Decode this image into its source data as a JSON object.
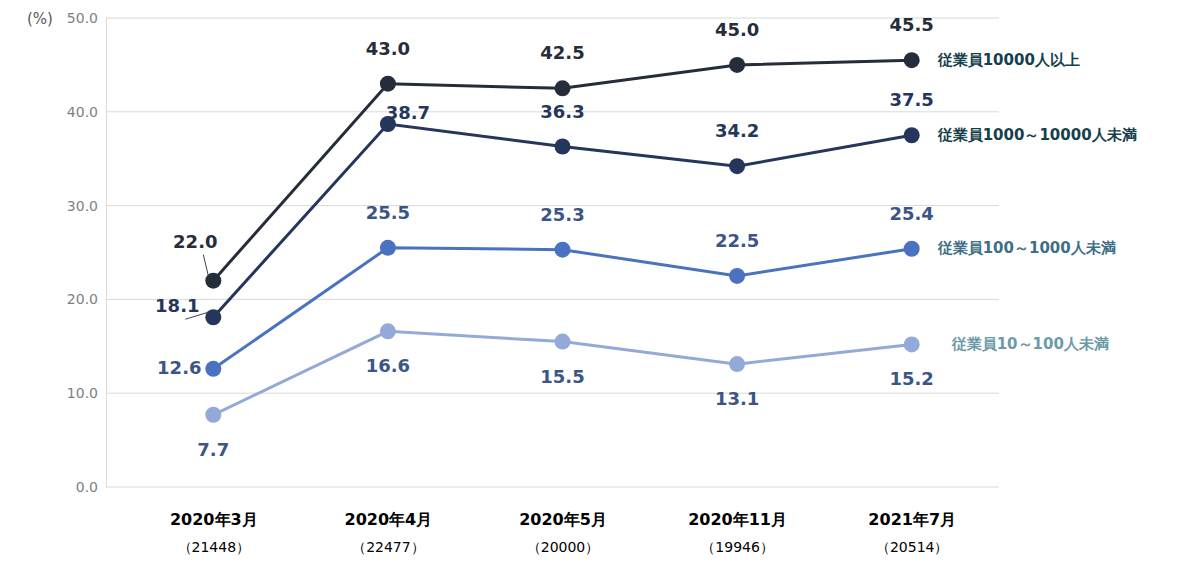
{
  "chart_data": {
    "type": "line",
    "y_label": "(%)",
    "categories": [
      "2020年3月\n（21448）",
      "2020年4月\n（22477）",
      "2020年5月\n（20000）",
      "2020年11月\n（19946）",
      "2021年7月\n（20514）"
    ],
    "series": [
      {
        "name": "従業員10000人以上",
        "color": "#262d3a",
        "values": [
          22.0,
          43.0,
          42.5,
          45.0,
          45.5
        ],
        "value_labels": [
          "22.0",
          "43.0",
          "42.5",
          "45.0",
          "45.5"
        ]
      },
      {
        "name": "従業員1000～10000人未満",
        "color": "#25365c",
        "values": [
          18.1,
          38.7,
          36.3,
          34.2,
          37.5
        ],
        "value_labels": [
          "18.1",
          "38.7",
          "36.3",
          "34.2",
          "37.5"
        ]
      },
      {
        "name": "従業員100～1000人未満",
        "color": "#4a72c0",
        "values": [
          12.6,
          25.5,
          25.3,
          22.5,
          25.4
        ],
        "value_labels": [
          "12.6",
          "25.5",
          "25.3",
          "22.5",
          "25.4"
        ]
      },
      {
        "name": "従業員10～100人未満",
        "color": "#93aad8",
        "values": [
          7.7,
          16.6,
          15.5,
          13.1,
          15.2
        ],
        "value_labels": [
          "7.7",
          "16.6",
          "15.5",
          "13.1",
          "15.2"
        ]
      }
    ],
    "ylim": [
      0,
      50
    ],
    "yticks": [
      {
        "value": 0,
        "label": "0.0"
      },
      {
        "value": 10,
        "label": "10.0"
      },
      {
        "value": 20,
        "label": "20.0"
      },
      {
        "value": 30,
        "label": "30.0"
      },
      {
        "value": 40,
        "label": "40.0"
      },
      {
        "value": 50,
        "label": "50.0"
      }
    ],
    "grid": true,
    "data_labels": true,
    "marker": "circle"
  }
}
